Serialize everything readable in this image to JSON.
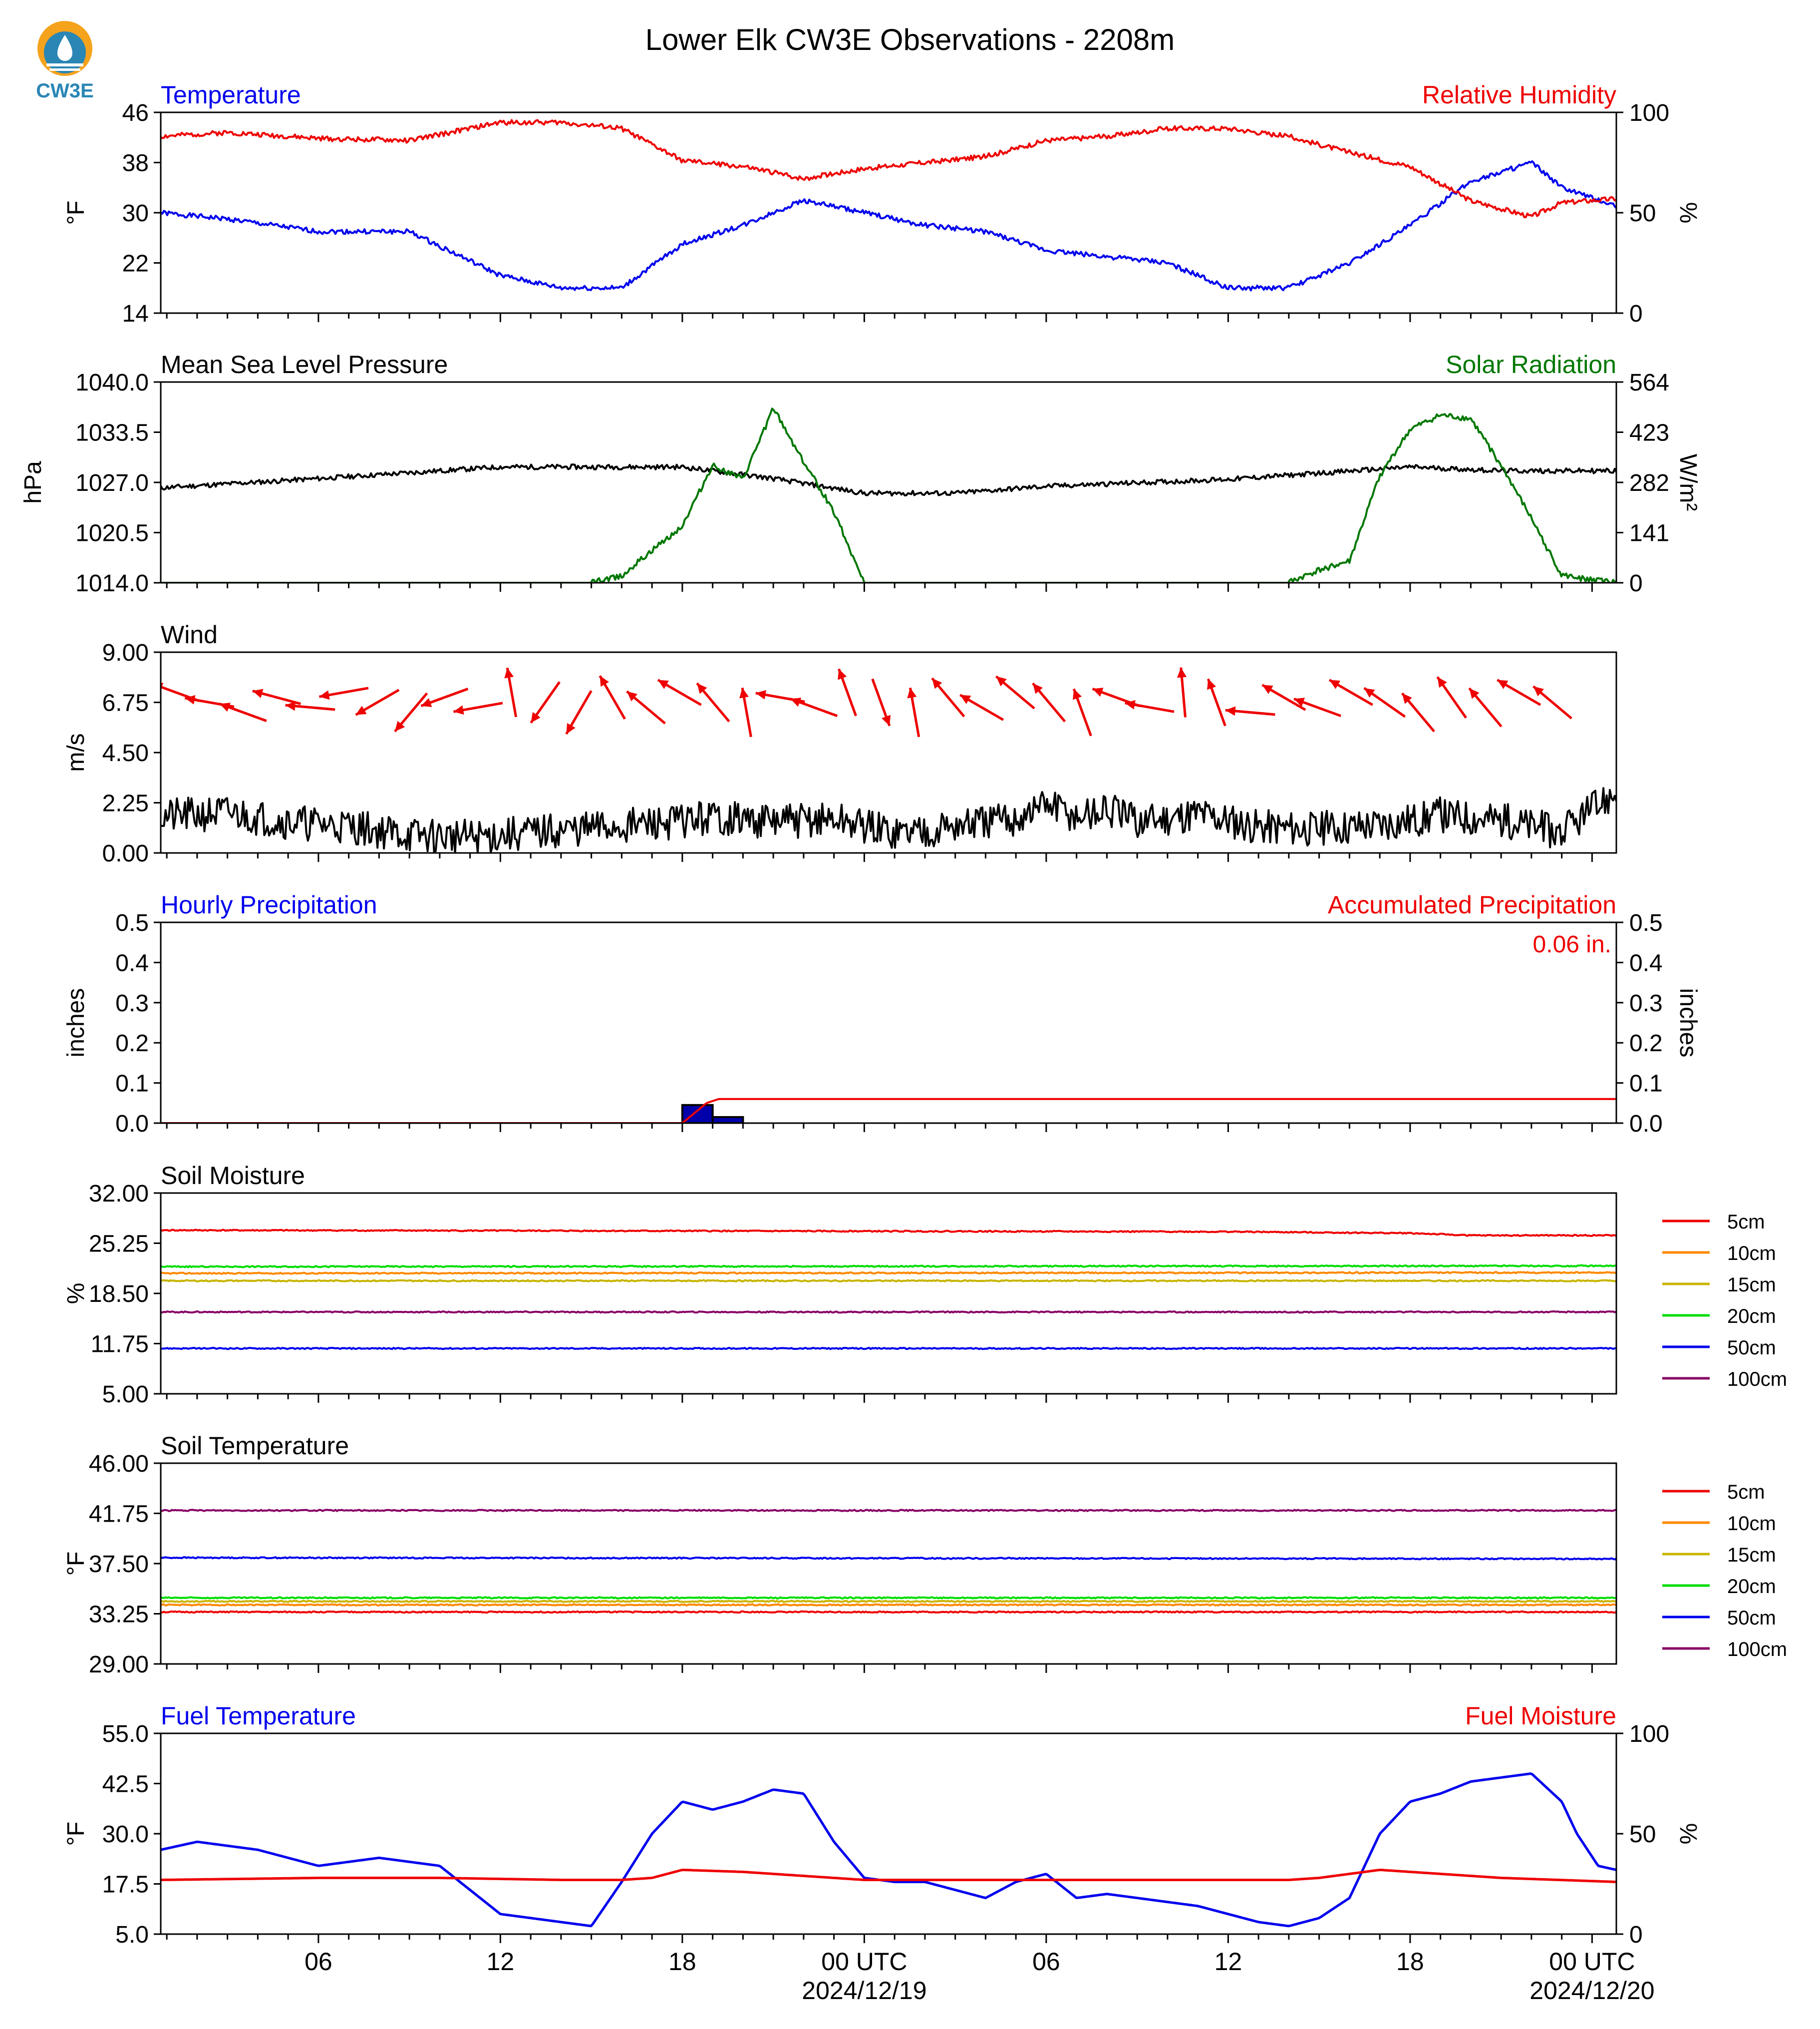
{
  "title": "Lower Elk CW3E Observations - 2208m",
  "logo_text": "CW3E",
  "colors": {
    "red": "#ee0000",
    "blue": "#0000ee",
    "green": "#007700",
    "black": "#000000",
    "logo_orange": "#f5a21c",
    "logo_blue": "#2a86b5"
  },
  "x_axis": {
    "hours_min": -23.2,
    "hours_max": 24.8,
    "tick_every_hours": 1,
    "labels": [
      {
        "h": -18,
        "text": "06"
      },
      {
        "h": -12,
        "text": "12"
      },
      {
        "h": -6,
        "text": "18"
      },
      {
        "h": 0,
        "text": "00 UTC",
        "date": "2024/12/19"
      },
      {
        "h": 6,
        "text": "06"
      },
      {
        "h": 12,
        "text": "12"
      },
      {
        "h": 18,
        "text": "18"
      },
      {
        "h": 24,
        "text": "00 UTC",
        "date": "2024/12/20"
      }
    ]
  },
  "chart_data": [
    {
      "type": "line",
      "title_left": "Temperature",
      "title_right": "Relative Humidity",
      "ylabel": "°F",
      "y2label": "%",
      "ylim": [
        14,
        46
      ],
      "yticks": [
        "14",
        "22",
        "30",
        "38",
        "46"
      ],
      "y2lim": [
        0,
        100
      ],
      "y2ticks": [
        "0",
        "50",
        "100"
      ],
      "series": [
        {
          "axis": "left",
          "color": "blue",
          "x": [
            -23.2,
            -21,
            -18,
            -15,
            -12,
            -10,
            -8,
            -6,
            -4,
            -2,
            0,
            2,
            4,
            6,
            8,
            10,
            12,
            14,
            16,
            18,
            20,
            22,
            23,
            24.8
          ],
          "y": [
            30,
            29,
            27,
            27,
            20,
            18,
            18,
            25,
            28,
            32,
            30,
            28,
            27,
            24,
            23,
            22,
            18,
            18,
            22,
            28,
            35,
            38,
            34,
            31
          ]
        },
        {
          "axis": "right",
          "color": "red",
          "x": [
            -23.2,
            -21,
            -18,
            -15,
            -12,
            -10,
            -8,
            -6,
            -4,
            -2,
            0,
            2,
            4,
            6,
            8,
            10,
            12,
            14,
            16,
            18,
            20,
            22,
            23,
            24.8
          ],
          "y": [
            88,
            90,
            87,
            86,
            95,
            95,
            92,
            76,
            73,
            67,
            72,
            75,
            78,
            86,
            88,
            92,
            92,
            88,
            80,
            73,
            56,
            48,
            55,
            57
          ]
        }
      ]
    },
    {
      "type": "line",
      "title_left": "Mean Sea Level Pressure",
      "title_right": "Solar Radiation",
      "ylabel": "hPa",
      "y2label": "W/m²",
      "ylim": [
        1014,
        1040
      ],
      "yticks": [
        "1014.0",
        "1020.5",
        "1027.0",
        "1033.5",
        "1040.0"
      ],
      "y2lim": [
        0,
        564
      ],
      "y2ticks": [
        "0",
        "141",
        "282",
        "423",
        "564"
      ],
      "series": [
        {
          "axis": "left",
          "color": "black",
          "x": [
            -23.2,
            -18,
            -12,
            -6,
            -3,
            0,
            3,
            6,
            12,
            18,
            21,
            24.8
          ],
          "y": [
            1026.3,
            1027.5,
            1029.0,
            1029.0,
            1027.5,
            1025.6,
            1025.6,
            1026.5,
            1027.4,
            1029.0,
            1028.5,
            1028.5
          ]
        },
        {
          "axis": "right",
          "color": "green",
          "x": [
            -23.2,
            -9,
            -8,
            -7,
            -6,
            -5,
            -4,
            -3,
            -2,
            -1,
            0,
            1,
            14,
            15,
            16,
            17,
            18,
            19,
            20,
            21,
            22,
            23,
            24.8
          ],
          "y": [
            0,
            0,
            20,
            90,
            160,
            330,
            290,
            490,
            340,
            200,
            0,
            0,
            0,
            35,
            60,
            300,
            430,
            470,
            460,
            330,
            180,
            20,
            0
          ]
        }
      ]
    },
    {
      "type": "line",
      "title_left": "Wind",
      "title_right": "",
      "ylabel": "m/s",
      "y2label": "",
      "ylim": [
        0,
        9
      ],
      "yticks": [
        "0.00",
        "2.25",
        "4.50",
        "6.75",
        "9.00"
      ],
      "series": [
        {
          "axis": "left",
          "color": "black",
          "x": [
            -23.2,
            -21,
            -19,
            -17,
            -15,
            -13,
            -11,
            -9,
            -7,
            -5,
            -3,
            -1,
            1,
            3,
            5,
            6,
            7,
            8,
            9,
            10,
            11,
            12,
            13,
            15,
            17,
            19,
            21,
            23,
            24.8
          ],
          "y": [
            1.6,
            1.8,
            1.4,
            1.2,
            0.8,
            0.7,
            0.9,
            1.1,
            1.3,
            1.6,
            1.4,
            1.5,
            0.9,
            1.2,
            1.5,
            2.2,
            1.6,
            1.9,
            1.4,
            1.6,
            1.8,
            1.5,
            1.2,
            1.1,
            1.3,
            1.7,
            1.5,
            0.9,
            2.7
          ]
        }
      ],
      "wind_arrows_dir_deg": [
        290,
        280,
        290,
        285,
        275,
        260,
        240,
        220,
        250,
        260,
        350,
        215,
        210,
        330,
        310,
        300,
        320,
        350,
        280,
        290,
        340,
        160,
        350,
        320,
        300,
        310,
        320,
        340,
        290,
        280,
        355,
        340,
        275,
        300,
        290,
        300,
        305,
        320,
        325,
        320,
        300,
        310
      ]
    },
    {
      "type": "bar",
      "title_left": "Hourly Precipitation",
      "title_right": "Accumulated Precipitation",
      "annotation": "0.06 in.",
      "ylabel": "inches",
      "y2label": "inches",
      "ylim": [
        0,
        0.5
      ],
      "yticks": [
        "0.0",
        "0.1",
        "0.2",
        "0.3",
        "0.4",
        "0.5"
      ],
      "y2lim": [
        0,
        0.5
      ],
      "y2ticks": [
        "0.0",
        "0.1",
        "0.2",
        "0.3",
        "0.4",
        "0.5"
      ],
      "bars": [
        {
          "start": -6,
          "end": -5,
          "value": 0.045
        },
        {
          "start": -5,
          "end": -4,
          "value": 0.015
        }
      ],
      "series": [
        {
          "axis": "right",
          "color": "red",
          "x": [
            -23.2,
            -6,
            -5.2,
            -4.8,
            24.8
          ],
          "y": [
            0,
            0,
            0.05,
            0.06,
            0.06
          ]
        }
      ]
    },
    {
      "type": "line",
      "title_left": "Soil Moisture",
      "title_right": "",
      "ylabel": "%",
      "y2label": "",
      "ylim": [
        5,
        32
      ],
      "yticks": [
        "5.00",
        "11.75",
        "18.50",
        "25.25",
        "32.00"
      ],
      "legend": [
        "5cm",
        "10cm",
        "15cm",
        "20cm",
        "50cm",
        "100cm"
      ],
      "legend_colors": [
        "#ee0000",
        "#ff8800",
        "#c8b400",
        "#00dd00",
        "#0000ee",
        "#880066"
      ],
      "series": [
        {
          "name": "5cm",
          "color": "#ee0000",
          "x": [
            -23.2,
            12,
            18,
            20,
            24.8
          ],
          "y": [
            27.0,
            26.8,
            26.6,
            26.3,
            26.3
          ]
        },
        {
          "name": "10cm",
          "color": "#ff8800",
          "x": [
            -23.2,
            24.8
          ],
          "y": [
            21.2,
            21.3
          ]
        },
        {
          "name": "15cm",
          "color": "#c8b400",
          "x": [
            -23.2,
            24.8
          ],
          "y": [
            20.2,
            20.2
          ]
        },
        {
          "name": "20cm",
          "color": "#00dd00",
          "x": [
            -23.2,
            24.8
          ],
          "y": [
            22.1,
            22.2
          ]
        },
        {
          "name": "50cm",
          "color": "#0000ee",
          "x": [
            -23.2,
            24.8
          ],
          "y": [
            11.1,
            11.1
          ]
        },
        {
          "name": "100cm",
          "color": "#880066",
          "x": [
            -23.2,
            24.8
          ],
          "y": [
            16.0,
            16.0
          ]
        }
      ]
    },
    {
      "type": "line",
      "title_left": "Soil Temperature",
      "title_right": "",
      "ylabel": "°F",
      "y2label": "",
      "ylim": [
        29,
        46
      ],
      "yticks": [
        "29.00",
        "33.25",
        "37.50",
        "41.75",
        "46.00"
      ],
      "legend": [
        "5cm",
        "10cm",
        "15cm",
        "20cm",
        "50cm",
        "100cm"
      ],
      "legend_colors": [
        "#ee0000",
        "#ff8800",
        "#c8b400",
        "#00dd00",
        "#0000ee",
        "#880066"
      ],
      "series": [
        {
          "name": "5cm",
          "color": "#ee0000",
          "x": [
            -23.2,
            24.8
          ],
          "y": [
            33.4,
            33.4
          ]
        },
        {
          "name": "10cm",
          "color": "#ff8800",
          "x": [
            -23.2,
            24.8
          ],
          "y": [
            34.0,
            34.0
          ]
        },
        {
          "name": "15cm",
          "color": "#c8b400",
          "x": [
            -23.2,
            24.8
          ],
          "y": [
            34.3,
            34.3
          ]
        },
        {
          "name": "20cm",
          "color": "#00dd00",
          "x": [
            -23.2,
            24.8
          ],
          "y": [
            34.6,
            34.6
          ]
        },
        {
          "name": "50cm",
          "color": "#0000ee",
          "x": [
            -23.2,
            24.8
          ],
          "y": [
            38.0,
            37.9
          ]
        },
        {
          "name": "100cm",
          "color": "#880066",
          "x": [
            -23.2,
            24.8
          ],
          "y": [
            42.0,
            42.0
          ]
        }
      ]
    },
    {
      "type": "line",
      "title_left": "Fuel Temperature",
      "title_right": "Fuel Moisture",
      "ylabel": "°F",
      "y2label": "%",
      "ylim": [
        5,
        55
      ],
      "yticks": [
        "5.0",
        "17.5",
        "30.0",
        "42.5",
        "55.0"
      ],
      "y2lim": [
        0,
        100
      ],
      "y2ticks": [
        "0",
        "50",
        "100"
      ],
      "series": [
        {
          "axis": "left",
          "color": "blue",
          "x": [
            -23.2,
            -22,
            -20,
            -18,
            -16,
            -14,
            -13,
            -12,
            -10,
            -9,
            -8,
            -7,
            -6,
            -5,
            -4,
            -3,
            -2,
            -1,
            0,
            1,
            2,
            3,
            4,
            5,
            6,
            7,
            8,
            9,
            10,
            11,
            12,
            13,
            14,
            15,
            16,
            17,
            18,
            19,
            20,
            21,
            22,
            23,
            23.5,
            24.2,
            24.8
          ],
          "y": [
            26,
            28,
            26,
            22,
            24,
            22,
            16,
            10,
            8,
            7,
            18,
            30,
            38,
            36,
            38,
            41,
            40,
            28,
            19,
            18,
            18,
            16,
            14,
            18,
            20,
            14,
            15,
            14,
            13,
            12,
            10,
            8,
            7,
            9,
            14,
            30,
            38,
            40,
            43,
            44,
            45,
            38,
            30,
            22,
            21
          ]
        },
        {
          "axis": "right",
          "color": "red",
          "x": [
            -23.2,
            -18,
            -14,
            -10,
            -8,
            -7,
            -6,
            -4,
            -3,
            -1,
            0,
            2,
            6,
            10,
            14,
            15,
            17,
            18,
            19,
            21,
            24.8
          ],
          "y": [
            27,
            28,
            28,
            27,
            27,
            28,
            32,
            31,
            30,
            28,
            27,
            27,
            27,
            27,
            27,
            28,
            32,
            31,
            30,
            28,
            26
          ]
        }
      ]
    }
  ]
}
